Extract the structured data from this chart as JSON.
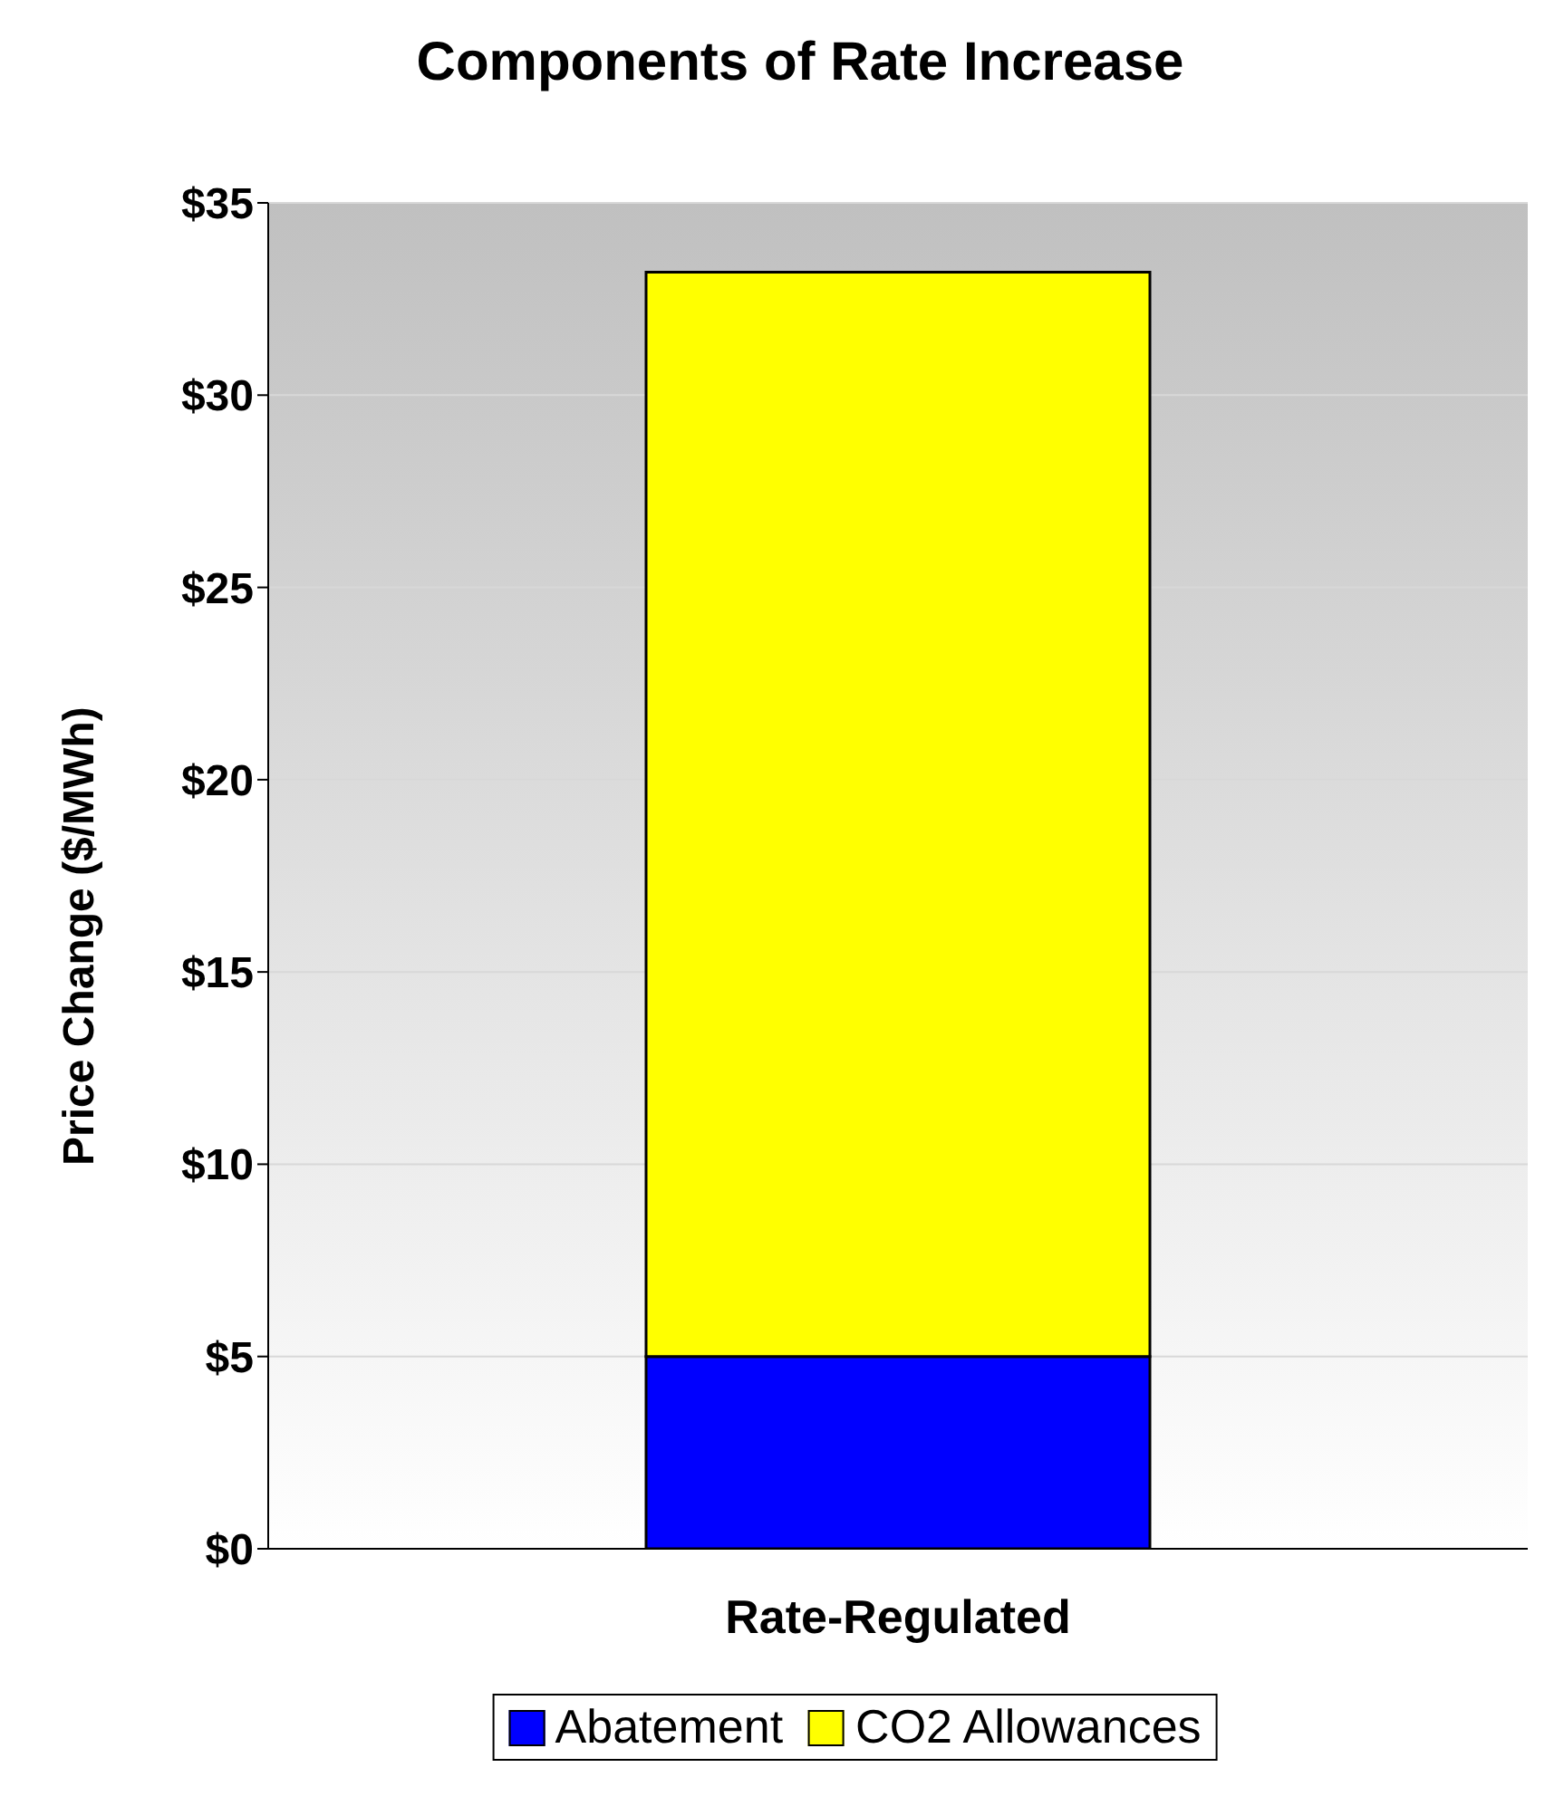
{
  "chart_data": {
    "type": "bar",
    "title": "Components of Rate Increase",
    "ylabel": "Price Change ($/MWh)",
    "categories": [
      "Rate-Regulated"
    ],
    "stacked": true,
    "series": [
      {
        "name": "Abatement",
        "color": "#0000ff",
        "values": [
          5
        ]
      },
      {
        "name": "CO2 Allowances",
        "color": "#ffff00",
        "values": [
          28.2
        ]
      }
    ],
    "ylim": [
      0,
      35
    ],
    "yticks": [
      {
        "value": 0,
        "label": "$0"
      },
      {
        "value": 5,
        "label": "$5"
      },
      {
        "value": 10,
        "label": "$10"
      },
      {
        "value": 15,
        "label": "$15"
      },
      {
        "value": 20,
        "label": "$20"
      },
      {
        "value": 25,
        "label": "$25"
      },
      {
        "value": 30,
        "label": "$30"
      },
      {
        "value": 35,
        "label": "$35"
      }
    ],
    "grid": "y",
    "legend": "bottom"
  }
}
